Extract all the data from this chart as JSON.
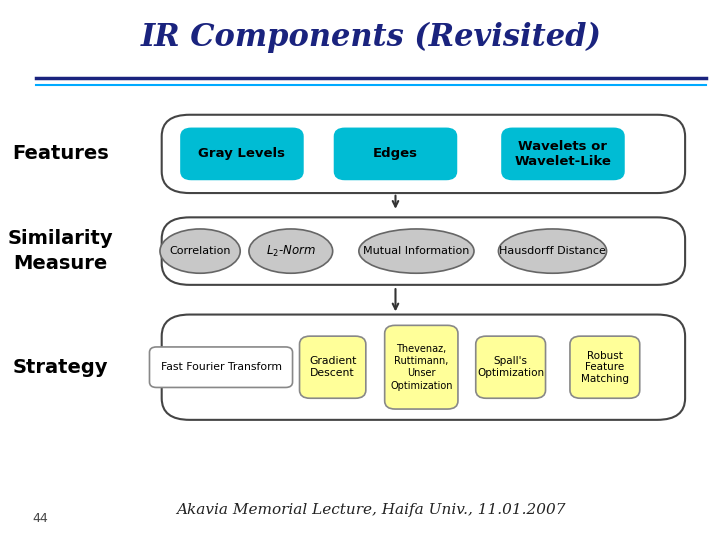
{
  "title": "IR Components (Revisited)",
  "title_color": "#1a237e",
  "title_fontsize": 22,
  "title_style": "italic",
  "bg_color": "#ffffff",
  "line_color": "#1a237e",
  "line2_color": "#00aaff",
  "features_items": [
    "Gray Levels",
    "Edges",
    "Wavelets or\nWavelet-Like"
  ],
  "similarity_items": [
    "Correlation",
    "L₂-Norm",
    "Mutual Information",
    "Hausdorff Distance"
  ],
  "strategy_rect_color": "#ffffff",
  "strategy_rounded_color": "#ffff99",
  "arrow_color": "#333333",
  "footer_text": "Akavia Memorial Lecture, Haifa Univ., 11.01.2007",
  "footer_fontsize": 11,
  "page_number": "44"
}
